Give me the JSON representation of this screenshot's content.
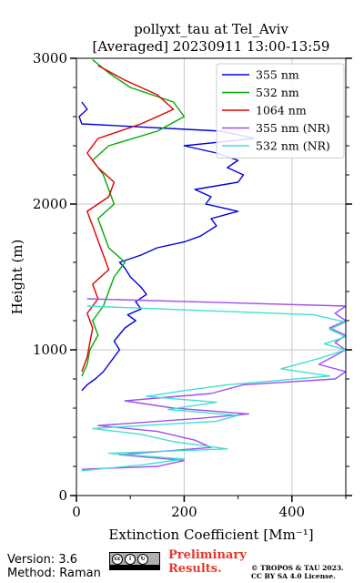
{
  "chart_data": {
    "type": "line",
    "title": "pollyxt_tau at Tel_Aviv",
    "subtitle": "[Averaged] 20230911 13:00-13:59",
    "xlabel": "Extinction Coefficient [Mm⁻¹]",
    "ylabel": "Height (m)",
    "xlim": [
      0,
      500
    ],
    "ylim": [
      0,
      3000
    ],
    "xticks": [
      0,
      200,
      400
    ],
    "yticks": [
      0,
      1000,
      2000,
      3000
    ],
    "grid": true,
    "legend_position": "top-right",
    "series": [
      {
        "name": "355 nm",
        "color": "#0000dd",
        "points": [
          [
            10,
            720
          ],
          [
            20,
            760
          ],
          [
            35,
            800
          ],
          [
            50,
            850
          ],
          [
            60,
            900
          ],
          [
            80,
            1000
          ],
          [
            70,
            1060
          ],
          [
            90,
            1150
          ],
          [
            110,
            1200
          ],
          [
            95,
            1240
          ],
          [
            120,
            1280
          ],
          [
            110,
            1330
          ],
          [
            130,
            1380
          ],
          [
            120,
            1430
          ],
          [
            100,
            1500
          ],
          [
            90,
            1560
          ],
          [
            80,
            1600
          ],
          [
            120,
            1650
          ],
          [
            150,
            1700
          ],
          [
            200,
            1740
          ],
          [
            230,
            1780
          ],
          [
            260,
            1850
          ],
          [
            250,
            1900
          ],
          [
            300,
            1950
          ],
          [
            240,
            2000
          ],
          [
            250,
            2050
          ],
          [
            220,
            2100
          ],
          [
            300,
            2150
          ],
          [
            310,
            2200
          ],
          [
            280,
            2250
          ],
          [
            300,
            2300
          ],
          [
            260,
            2350
          ],
          [
            200,
            2400
          ],
          [
            330,
            2450
          ],
          [
            270,
            2500
          ],
          [
            10,
            2550
          ],
          [
            5,
            2600
          ],
          [
            20,
            2650
          ],
          [
            10,
            2700
          ]
        ]
      },
      {
        "name": "532 nm",
        "color": "#00aa00",
        "points": [
          [
            10,
            820
          ],
          [
            20,
            900
          ],
          [
            25,
            1000
          ],
          [
            40,
            1100
          ],
          [
            30,
            1200
          ],
          [
            50,
            1300
          ],
          [
            60,
            1400
          ],
          [
            70,
            1500
          ],
          [
            90,
            1600
          ],
          [
            60,
            1700
          ],
          [
            50,
            1800
          ],
          [
            40,
            1900
          ],
          [
            70,
            2000
          ],
          [
            60,
            2100
          ],
          [
            50,
            2200
          ],
          [
            30,
            2300
          ],
          [
            60,
            2400
          ],
          [
            150,
            2500
          ],
          [
            200,
            2600
          ],
          [
            180,
            2700
          ],
          [
            100,
            2800
          ],
          [
            60,
            2900
          ],
          [
            30,
            2990
          ]
        ]
      },
      {
        "name": "1064 nm",
        "color": "#dd0000",
        "points": [
          [
            10,
            850
          ],
          [
            20,
            950
          ],
          [
            25,
            1050
          ],
          [
            30,
            1150
          ],
          [
            20,
            1250
          ],
          [
            40,
            1350
          ],
          [
            30,
            1450
          ],
          [
            60,
            1550
          ],
          [
            50,
            1650
          ],
          [
            40,
            1750
          ],
          [
            30,
            1850
          ],
          [
            20,
            1950
          ],
          [
            60,
            2050
          ],
          [
            70,
            2150
          ],
          [
            40,
            2250
          ],
          [
            20,
            2350
          ],
          [
            40,
            2450
          ],
          [
            120,
            2550
          ],
          [
            180,
            2650
          ],
          [
            150,
            2750
          ],
          [
            90,
            2850
          ],
          [
            40,
            2950
          ]
        ]
      },
      {
        "name": "355 nm (NR)",
        "color": "#a050f0",
        "points": [
          [
            10,
            180
          ],
          [
            150,
            200
          ],
          [
            200,
            240
          ],
          [
            80,
            280
          ],
          [
            250,
            330
          ],
          [
            220,
            380
          ],
          [
            150,
            440
          ],
          [
            40,
            480
          ],
          [
            230,
            530
          ],
          [
            320,
            560
          ],
          [
            180,
            600
          ],
          [
            90,
            650
          ],
          [
            250,
            700
          ],
          [
            310,
            760
          ],
          [
            480,
            800
          ],
          [
            500,
            850
          ],
          [
            450,
            900
          ],
          [
            500,
            1000
          ],
          [
            480,
            1050
          ],
          [
            500,
            1100
          ],
          [
            470,
            1150
          ],
          [
            500,
            1200
          ],
          [
            480,
            1250
          ],
          [
            500,
            1300
          ],
          [
            20,
            1350
          ]
        ]
      },
      {
        "name": "532 nm (NR)",
        "color": "#40e0d0",
        "points": [
          [
            10,
            170
          ],
          [
            120,
            210
          ],
          [
            200,
            250
          ],
          [
            60,
            290
          ],
          [
            280,
            320
          ],
          [
            180,
            370
          ],
          [
            120,
            420
          ],
          [
            30,
            460
          ],
          [
            260,
            510
          ],
          [
            300,
            550
          ],
          [
            170,
            590
          ],
          [
            260,
            640
          ],
          [
            130,
            680
          ],
          [
            200,
            720
          ],
          [
            280,
            760
          ],
          [
            470,
            820
          ],
          [
            380,
            870
          ],
          [
            450,
            940
          ],
          [
            500,
            1000
          ],
          [
            460,
            1040
          ],
          [
            500,
            1090
          ],
          [
            470,
            1140
          ],
          [
            500,
            1190
          ],
          [
            440,
            1240
          ],
          [
            20,
            1300
          ]
        ]
      }
    ]
  },
  "footer": {
    "version": "Version: 3.6",
    "method": "Method: Raman",
    "preliminary_line1": "Preliminary",
    "preliminary_line2": "Results.",
    "copyright_line1": "© TROPOS & TAU 2023.",
    "copyright_line2": "CC BY SA 4.0 License."
  }
}
